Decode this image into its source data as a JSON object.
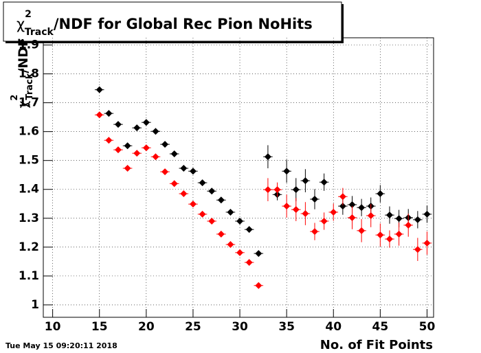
{
  "chart_data": {
    "type": "scatter",
    "title": {
      "symbol": "χ",
      "sup": "2",
      "sub": "Track",
      "text": "/NDF for Global Rec Pion NoHits"
    },
    "y_label": {
      "symbol": "χ",
      "sup": "2",
      "sub": "Track",
      "text": "/NDF"
    },
    "x_label": "No. of Fit Points",
    "timestamp": "Tue May 15 09:20:11 2018",
    "xlim": [
      9,
      50.7
    ],
    "ylim": [
      0.957,
      1.925
    ],
    "xticks": [
      10,
      15,
      20,
      25,
      30,
      35,
      40,
      45,
      50
    ],
    "yticks": [
      1,
      1.1,
      1.2,
      1.3,
      1.4,
      1.5,
      1.6,
      1.7,
      1.8,
      1.9
    ],
    "grid": true,
    "xerr": 0.5,
    "series": [
      {
        "color": "#000000",
        "x": [
          15,
          16,
          17,
          18,
          19,
          20,
          21,
          22,
          23,
          24,
          25,
          26,
          27,
          28,
          29,
          30,
          31,
          32,
          33,
          34,
          35,
          36,
          37,
          38,
          39,
          41,
          42,
          43,
          44,
          45,
          46,
          47,
          48,
          49,
          50
        ],
        "values": [
          1.745,
          1.663,
          1.625,
          1.551,
          1.613,
          1.632,
          1.601,
          1.556,
          1.523,
          1.473,
          1.463,
          1.423,
          1.394,
          1.363,
          1.321,
          1.29,
          1.261,
          1.178,
          1.513,
          1.382,
          1.463,
          1.399,
          1.43,
          1.366,
          1.425,
          1.342,
          1.347,
          1.337,
          1.342,
          1.385,
          1.311,
          1.299,
          1.302,
          1.295,
          1.314
        ],
        "errors": [
          0.005,
          0.005,
          0.005,
          0.005,
          0.005,
          0.005,
          0.005,
          0.005,
          0.005,
          0.005,
          0.005,
          0.005,
          0.005,
          0.005,
          0.005,
          0.005,
          0.005,
          0.005,
          0.04,
          0.02,
          0.04,
          0.04,
          0.04,
          0.035,
          0.03,
          0.03,
          0.03,
          0.03,
          0.03,
          0.03,
          0.03,
          0.03,
          0.03,
          0.03,
          0.03
        ]
      },
      {
        "color": "#ff0000",
        "x": [
          15,
          16,
          17,
          18,
          19,
          20,
          21,
          22,
          23,
          24,
          25,
          26,
          27,
          28,
          29,
          30,
          31,
          32,
          33,
          34,
          35,
          36,
          37,
          38,
          39,
          40,
          41,
          42,
          43,
          44,
          45,
          46,
          47,
          48,
          49,
          50
        ],
        "values": [
          1.658,
          1.57,
          1.537,
          1.473,
          1.525,
          1.544,
          1.513,
          1.461,
          1.42,
          1.385,
          1.349,
          1.314,
          1.29,
          1.245,
          1.209,
          1.181,
          1.147,
          1.067,
          1.399,
          1.399,
          1.342,
          1.33,
          1.316,
          1.254,
          1.29,
          1.321,
          1.375,
          1.302,
          1.257,
          1.309,
          1.242,
          1.228,
          1.245,
          1.276,
          1.192,
          1.214
        ],
        "errors": [
          0.005,
          0.005,
          0.005,
          0.005,
          0.005,
          0.005,
          0.005,
          0.005,
          0.005,
          0.005,
          0.005,
          0.005,
          0.005,
          0.005,
          0.005,
          0.005,
          0.005,
          0.005,
          0.04,
          0.025,
          0.04,
          0.04,
          0.04,
          0.03,
          0.03,
          0.03,
          0.03,
          0.04,
          0.04,
          0.04,
          0.04,
          0.03,
          0.04,
          0.04,
          0.04,
          0.04
        ]
      }
    ]
  }
}
